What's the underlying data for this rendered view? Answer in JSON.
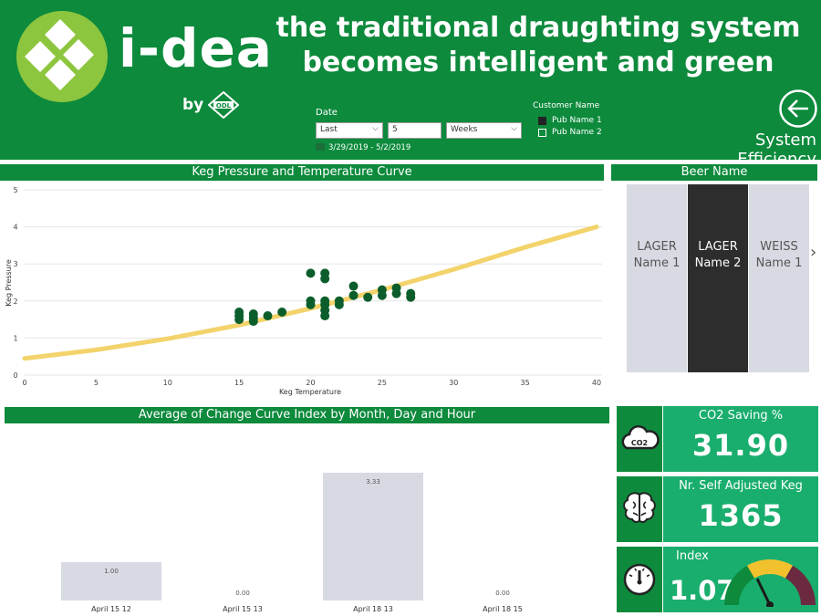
{
  "header": {
    "brand": "i-dea",
    "by": "by",
    "odl_logo_text": "ODL",
    "tagline_line1": "the traditional draughting system",
    "tagline_line2": "becomes intelligent and green",
    "page_title": "System Efficiency"
  },
  "filters": {
    "date_label": "Date",
    "relative": "Last",
    "amount": "5",
    "unit": "Weeks",
    "range_text": "3/29/2019 - 5/2/2019",
    "customer_label": "Customer Name",
    "customers": [
      {
        "name": "Pub Name 1",
        "checked": true
      },
      {
        "name": "Pub Name 2",
        "checked": false
      }
    ]
  },
  "scatter": {
    "title": "Keg Pressure and Temperature Curve",
    "chart_data": {
      "type": "scatter",
      "xlabel": "Keg Temperature",
      "ylabel": "Keg Pressure",
      "xlim": [
        0,
        40
      ],
      "ylim": [
        0,
        5
      ],
      "xticks": [
        "0",
        "5",
        "10",
        "15",
        "20",
        "25",
        "30",
        "35",
        "40"
      ],
      "yticks": [
        "0",
        "1",
        "2",
        "3",
        "4",
        "5"
      ],
      "curve": {
        "x": [
          0,
          5,
          10,
          15,
          20,
          25,
          30,
          35,
          40
        ],
        "y": [
          0.45,
          0.68,
          0.98,
          1.35,
          1.8,
          2.3,
          2.85,
          3.45,
          4.0
        ]
      },
      "points": [
        {
          "x": 15,
          "y": 1.5
        },
        {
          "x": 15,
          "y": 1.6
        },
        {
          "x": 15,
          "y": 1.7
        },
        {
          "x": 16,
          "y": 1.45
        },
        {
          "x": 16,
          "y": 1.55
        },
        {
          "x": 16,
          "y": 1.65
        },
        {
          "x": 17,
          "y": 1.6
        },
        {
          "x": 18,
          "y": 1.7
        },
        {
          "x": 20,
          "y": 1.9
        },
        {
          "x": 20,
          "y": 2.0
        },
        {
          "x": 20,
          "y": 2.75
        },
        {
          "x": 21,
          "y": 1.6
        },
        {
          "x": 21,
          "y": 1.75
        },
        {
          "x": 21,
          "y": 1.9
        },
        {
          "x": 21,
          "y": 2.0
        },
        {
          "x": 21,
          "y": 2.6
        },
        {
          "x": 21,
          "y": 2.75
        },
        {
          "x": 22,
          "y": 1.9
        },
        {
          "x": 22,
          "y": 2.0
        },
        {
          "x": 23,
          "y": 2.15
        },
        {
          "x": 23,
          "y": 2.4
        },
        {
          "x": 24,
          "y": 2.1
        },
        {
          "x": 25,
          "y": 2.15
        },
        {
          "x": 25,
          "y": 2.3
        },
        {
          "x": 26,
          "y": 2.2
        },
        {
          "x": 26,
          "y": 2.35
        },
        {
          "x": 27,
          "y": 2.1
        },
        {
          "x": 27,
          "y": 2.2
        }
      ]
    }
  },
  "beer": {
    "title": "Beer Name",
    "items": [
      {
        "line1": "LAGER",
        "line2": "Name 1",
        "selected": false
      },
      {
        "line1": "LAGER",
        "line2": "Name 2",
        "selected": true
      },
      {
        "line1": "WEISS",
        "line2": "Name 1",
        "selected": false
      }
    ],
    "next_icon": "chevron-right-icon"
  },
  "bar": {
    "title": "Average of Change Curve Index by Month, Day and Hour",
    "chart_data": {
      "type": "bar",
      "categories": [
        "April 15 12",
        "April 15 13",
        "April 18 13",
        "April 18 15"
      ],
      "values": [
        1.0,
        0.0,
        3.33,
        0.0
      ],
      "labels": [
        "1.00",
        "0.00",
        "3.33",
        "0.00"
      ],
      "ylim": [
        0,
        4
      ]
    }
  },
  "kpis": [
    {
      "icon": "co2-cloud-icon",
      "icon_text": "CO2",
      "title": "CO2 Saving %",
      "value": "31.90"
    },
    {
      "icon": "brain-icon",
      "title": "Nr. Self Adjusted Keg",
      "value": "1365"
    },
    {
      "icon": "gauge-icon",
      "title": "Index",
      "value": "1.07",
      "gauge_level": 1.07,
      "gauge_max": 3
    }
  ],
  "colors": {
    "brand_green": "#0d8a3c",
    "kpi_green": "#19ae6d",
    "logo_green": "#8cc63f",
    "point": "#0b5e2c",
    "curve": "#f3d36b",
    "bar": "#d8dae3",
    "gauge_green": "#0d8a3c",
    "gauge_yellow": "#f2c12e",
    "gauge_maroon": "#6b2a3f"
  }
}
